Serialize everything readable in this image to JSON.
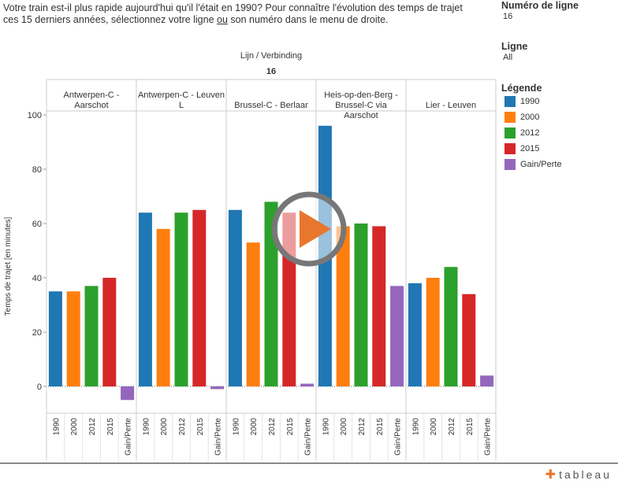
{
  "intro": {
    "line1": "Votre train est-il plus rapide aujourd'hui qu'il l'était en 1990? Pour connaître l'évolution des temps de trajet",
    "line2_before": "ces 15 derniers années, sélectionnez votre ligne ",
    "line2_underline": "ou",
    "line2_after": " son numéro dans le menu de droite."
  },
  "filters": {
    "line_number_title": "Numéro de ligne",
    "line_number_value": "16",
    "line_title": "Ligne",
    "line_value": "All"
  },
  "legend": {
    "title": "Légende",
    "items": [
      {
        "label": "1990",
        "color": "#1f77b4"
      },
      {
        "label": "2000",
        "color": "#ff7f0e"
      },
      {
        "label": "2012",
        "color": "#2ca02c"
      },
      {
        "label": "2015",
        "color": "#d62728"
      },
      {
        "label": "Gain/Perte",
        "color": "#9467bd"
      }
    ]
  },
  "chart_data": {
    "type": "bar",
    "header_title": "Lijn  /  Verbinding",
    "header_value": "16",
    "ylabel": "Temps de trajet [en minutes]",
    "ylim": [
      -10,
      105
    ],
    "yticks": [
      0,
      20,
      40,
      60,
      80,
      100
    ],
    "categories": [
      "1990",
      "2000",
      "2012",
      "2015",
      "Gain/Perte"
    ],
    "panels": [
      {
        "name": "Antwerpen-C - Aarschot",
        "values": [
          35,
          35,
          37,
          40,
          -5
        ]
      },
      {
        "name": "Antwerpen-C - Leuven L",
        "values": [
          64,
          58,
          64,
          65,
          -1
        ]
      },
      {
        "name": "Brussel-C - Berlaar",
        "values": [
          65,
          53,
          68,
          64,
          1
        ]
      },
      {
        "name": "Heis-op-den-Berg - Brussel-C via Aarschot",
        "values": [
          96,
          59,
          60,
          59,
          37
        ]
      },
      {
        "name": "Lier - Leuven",
        "values": [
          38,
          40,
          44,
          34,
          4
        ]
      }
    ],
    "colors": [
      "#1f77b4",
      "#ff7f0e",
      "#2ca02c",
      "#d62728",
      "#9467bd"
    ]
  },
  "branding": {
    "logo_text": "tableau",
    "logo_mark": "icon-tableau-plus"
  },
  "overlay": {
    "play_icon": "play-button-icon"
  }
}
